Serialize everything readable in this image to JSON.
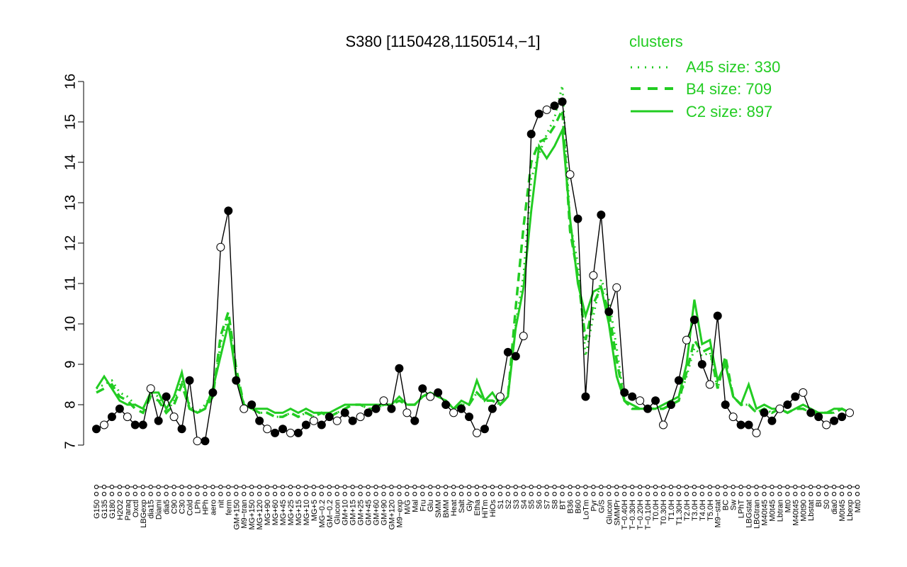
{
  "chart_data": {
    "type": "line",
    "title": "S380 [1150428,1150514,−1]",
    "xlabel": "",
    "ylabel": "",
    "ylim": [
      7,
      16
    ],
    "yticks": [
      7,
      8,
      9,
      10,
      11,
      12,
      13,
      14,
      15,
      16
    ],
    "xticks": [
      "G150",
      "G135",
      "G180",
      "H2O2",
      "Paraq",
      "Oxctl",
      "LBGexp",
      "dia15",
      "Diami",
      "dia5",
      "C90",
      "C30",
      "Cold",
      "LPh",
      "HPh",
      "aero",
      "nit",
      "ferm",
      "GM+150",
      "M9−tran",
      "MG+150",
      "MG+120",
      "MG+90",
      "MG+60",
      "MG+45",
      "MG+25",
      "MG+15",
      "MG+10",
      "MG+5",
      "MG−0.2",
      "GM−0.2",
      "Glucon",
      "GM+10",
      "GM+15",
      "GM+25",
      "GM+45",
      "GM+60",
      "GM+90",
      "GM+120",
      "M9−exp",
      "M/G",
      "Mal",
      "Fru",
      "Glu",
      "SMM",
      "BMM",
      "Heat",
      "Salt",
      "Gly",
      "Etha",
      "HiTm",
      "HiOs",
      "S1",
      "S2",
      "S3",
      "S4",
      "S5",
      "S6",
      "S7",
      "S8",
      "BT",
      "B36",
      "B60",
      "LoTm",
      "Pyr",
      "G/S",
      "Glucon",
      "SMMPr",
      "T−0.40H",
      "T−0.30H",
      "T−0.20H",
      "T−0.10H",
      "T0.0H",
      "T0.30H",
      "T1.0H",
      "T1.30H",
      "T2.0H",
      "T3.0H",
      "T4.0H",
      "T5.0H",
      "M9−stat",
      "BC",
      "Sw",
      "LPhT",
      "LBGstat",
      "LBGtran",
      "M40t45",
      "M0t45",
      "Lbtran",
      "Mt0",
      "M40t45",
      "M0t90",
      "Lbstat",
      "BI",
      "S0",
      "dia0",
      "M0t45",
      "Lbexp",
      "Mt0"
    ],
    "series": [
      {
        "style": "dotted",
        "values": [
          8.4,
          8.5,
          8.6,
          8.3,
          8.2,
          8.0,
          7.9,
          8.3,
          8.2,
          7.8,
          8.1,
          8.6,
          8.0,
          7.8,
          8.0,
          8.3,
          9.5,
          10.2,
          8.8,
          8.0,
          7.9,
          7.8,
          7.8,
          7.7,
          7.7,
          7.8,
          7.7,
          7.8,
          7.7,
          7.8,
          7.7,
          7.8,
          7.9,
          8.0,
          8.0,
          7.9,
          7.9,
          8.0,
          8.0,
          8.1,
          8.0,
          8.0,
          8.2,
          8.3,
          8.2,
          8.1,
          7.9,
          8.0,
          8.0,
          8.3,
          8.1,
          8.1,
          8.0,
          8.2,
          10.0,
          11.2,
          13.6,
          14.2,
          14.7,
          15.1,
          15.9,
          12.5,
          11.5,
          9.2,
          10.2,
          11.1,
          10.6,
          9.4,
          8.1,
          7.9,
          7.9,
          7.9,
          7.9,
          7.9,
          8.0,
          8.1,
          8.7,
          9.4,
          9.2,
          9.3,
          8.4,
          9.1,
          8.2,
          8.0,
          8.0,
          7.8,
          7.9,
          7.8,
          7.9,
          7.8,
          7.9,
          7.9,
          7.8,
          7.8,
          7.8,
          7.8,
          7.9,
          7.8
        ]
      },
      {
        "style": "dashed",
        "values": [
          8.3,
          8.4,
          8.5,
          8.2,
          8.1,
          7.9,
          7.8,
          8.2,
          8.1,
          7.8,
          8.0,
          8.5,
          7.9,
          7.8,
          7.9,
          8.2,
          9.7,
          10.3,
          8.9,
          8.0,
          7.9,
          7.8,
          7.8,
          7.7,
          7.7,
          7.8,
          7.7,
          7.8,
          7.7,
          7.8,
          7.7,
          7.8,
          7.9,
          8.0,
          8.0,
          7.9,
          7.9,
          8.0,
          8.0,
          8.1,
          8.0,
          8.0,
          8.2,
          8.3,
          8.2,
          8.1,
          7.9,
          8.0,
          8.0,
          8.3,
          8.1,
          8.1,
          8.0,
          8.2,
          10.4,
          12.4,
          14.0,
          14.5,
          14.6,
          14.9,
          15.3,
          12.3,
          11.2,
          9.6,
          10.5,
          10.9,
          10.3,
          9.1,
          8.1,
          7.9,
          7.9,
          7.9,
          7.9,
          7.9,
          8.0,
          8.1,
          8.8,
          9.6,
          9.3,
          9.4,
          8.4,
          9.2,
          8.2,
          8.0,
          8.0,
          7.8,
          7.9,
          7.8,
          7.9,
          7.8,
          7.9,
          7.9,
          7.8,
          7.8,
          7.8,
          7.8,
          7.9,
          7.8
        ]
      },
      {
        "style": "solid",
        "values": [
          8.4,
          8.7,
          8.4,
          8.1,
          8.0,
          8.0,
          7.9,
          8.3,
          8.3,
          7.9,
          8.2,
          8.8,
          7.9,
          7.8,
          7.9,
          8.4,
          9.2,
          10.0,
          8.7,
          8.0,
          7.9,
          7.9,
          7.9,
          7.8,
          7.8,
          7.9,
          7.8,
          7.9,
          7.8,
          7.8,
          7.8,
          7.9,
          8.0,
          8.0,
          8.0,
          8.0,
          8.0,
          8.0,
          8.0,
          8.2,
          8.0,
          8.0,
          8.2,
          8.3,
          8.2,
          8.1,
          7.9,
          8.1,
          8.0,
          8.6,
          8.1,
          8.3,
          8.0,
          8.2,
          9.9,
          10.9,
          12.8,
          14.4,
          14.1,
          14.4,
          14.8,
          12.6,
          11.0,
          10.2,
          10.8,
          10.9,
          10.0,
          8.7,
          8.1,
          8.0,
          7.9,
          7.9,
          7.9,
          8.0,
          8.1,
          8.2,
          9.0,
          10.6,
          9.5,
          9.6,
          8.6,
          9.0,
          8.2,
          8.0,
          8.5,
          7.9,
          8.0,
          7.9,
          7.9,
          7.8,
          7.9,
          8.0,
          7.9,
          7.8,
          7.8,
          7.9,
          7.9,
          7.8
        ]
      },
      {
        "style": "points",
        "values": [
          7.4,
          7.5,
          7.7,
          7.9,
          7.7,
          7.5,
          7.5,
          8.4,
          7.6,
          8.2,
          7.7,
          7.4,
          8.6,
          7.1,
          7.1,
          8.3,
          11.9,
          12.8,
          8.6,
          7.9,
          8.0,
          7.6,
          7.4,
          7.3,
          7.4,
          7.3,
          7.3,
          7.5,
          7.6,
          7.5,
          7.7,
          7.6,
          7.8,
          7.6,
          7.7,
          7.8,
          7.9,
          8.1,
          7.9,
          8.9,
          7.8,
          7.6,
          8.4,
          8.2,
          8.3,
          8.0,
          7.8,
          7.9,
          7.7,
          7.3,
          7.4,
          7.9,
          8.2,
          9.3,
          9.2,
          9.7,
          14.7,
          15.2,
          15.3,
          15.4,
          15.5,
          13.7,
          12.6,
          8.2,
          11.2,
          12.7,
          10.3,
          10.9,
          8.3,
          8.2,
          8.1,
          7.9,
          8.1,
          7.5,
          8.0,
          8.6,
          9.6,
          10.1,
          9.0,
          8.5,
          10.2,
          8.0,
          7.7,
          7.5,
          7.5,
          7.3,
          7.8,
          7.6,
          7.9,
          8.0,
          8.2,
          8.3,
          7.8,
          7.7,
          7.5,
          7.6,
          7.7,
          7.8
        ]
      }
    ]
  },
  "legend": {
    "title": "clusters",
    "items": [
      {
        "label": "A45 size: 330",
        "style": "dotted"
      },
      {
        "label": "B4 size: 709",
        "style": "dashed"
      },
      {
        "label": "C2 size: 897",
        "style": "solid"
      }
    ]
  },
  "colors": {
    "cluster_line": "#22cc22",
    "points_line": "#000000"
  }
}
